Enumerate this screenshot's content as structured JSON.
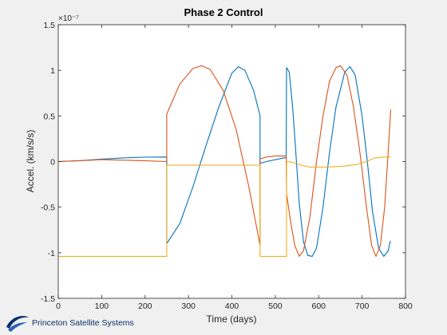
{
  "logo": {
    "text": "Princeton Satellite Systems"
  },
  "chart_data": {
    "type": "line",
    "title": "Phase 2 Control",
    "xlabel": "Time (days)",
    "ylabel": "Accel. (km/s/s)",
    "y_exponent": "×10⁻⁷",
    "xlim": [
      0,
      800
    ],
    "ylim": [
      -1.5,
      1.5
    ],
    "x_ticks": [
      0,
      100,
      200,
      300,
      400,
      500,
      600,
      700,
      800
    ],
    "y_ticks": [
      -1.5,
      -1,
      -0.5,
      0,
      0.5,
      1,
      1.5
    ],
    "x_tick_labels": [
      "0",
      "100",
      "200",
      "300",
      "400",
      "500",
      "600",
      "700",
      "800"
    ],
    "y_tick_labels": [
      "-1.5",
      "-1",
      "-0.5",
      "0",
      "0.5",
      "1",
      "1.5"
    ],
    "grid": false,
    "colors": {
      "blue": "#0072bd",
      "orange": "#d95319",
      "yellow": "#edb120"
    },
    "series": [
      {
        "color": "#0072bd",
        "points": [
          [
            0,
            0
          ],
          [
            50,
            0.01
          ],
          [
            100,
            0.025
          ],
          [
            150,
            0.04
          ],
          [
            200,
            0.048
          ],
          [
            250,
            0.05
          ],
          [
            250,
            -0.9
          ],
          [
            280,
            -0.68
          ],
          [
            310,
            -0.28
          ],
          [
            340,
            0.17
          ],
          [
            370,
            0.6
          ],
          [
            400,
            0.97
          ],
          [
            415,
            1.04
          ],
          [
            430,
            1.0
          ],
          [
            450,
            0.78
          ],
          [
            465,
            0.5
          ],
          [
            465,
            -0.02
          ],
          [
            480,
            0.0
          ],
          [
            500,
            0.02
          ],
          [
            520,
            0.04
          ],
          [
            525,
            0.04
          ],
          [
            526,
            1.03
          ],
          [
            532,
            0.98
          ],
          [
            540,
            0.6
          ],
          [
            548,
            0.05
          ],
          [
            555,
            -0.45
          ],
          [
            565,
            -0.88
          ],
          [
            575,
            -1.03
          ],
          [
            585,
            -1.04
          ],
          [
            595,
            -0.95
          ],
          [
            610,
            -0.5
          ],
          [
            625,
            0.1
          ],
          [
            640,
            0.6
          ],
          [
            660,
            0.98
          ],
          [
            672,
            1.04
          ],
          [
            684,
            0.95
          ],
          [
            700,
            0.5
          ],
          [
            712,
            0.0
          ],
          [
            724,
            -0.55
          ],
          [
            738,
            -0.95
          ],
          [
            750,
            -1.04
          ],
          [
            760,
            -0.98
          ],
          [
            765,
            -0.87
          ]
        ]
      },
      {
        "color": "#d95319",
        "points": [
          [
            0,
            0
          ],
          [
            50,
            0.01
          ],
          [
            100,
            0.02
          ],
          [
            150,
            0.015
          ],
          [
            200,
            0.008
          ],
          [
            250,
            0.0
          ],
          [
            250,
            0.52
          ],
          [
            280,
            0.85
          ],
          [
            310,
            1.02
          ],
          [
            330,
            1.05
          ],
          [
            350,
            1.01
          ],
          [
            380,
            0.78
          ],
          [
            410,
            0.35
          ],
          [
            440,
            -0.3
          ],
          [
            465,
            -0.92
          ],
          [
            465,
            0.03
          ],
          [
            480,
            0.05
          ],
          [
            500,
            0.06
          ],
          [
            525,
            0.06
          ],
          [
            526,
            -0.35
          ],
          [
            535,
            -0.65
          ],
          [
            545,
            -0.92
          ],
          [
            555,
            -1.04
          ],
          [
            565,
            -0.98
          ],
          [
            580,
            -0.6
          ],
          [
            595,
            0.0
          ],
          [
            610,
            0.5
          ],
          [
            625,
            0.88
          ],
          [
            640,
            1.03
          ],
          [
            650,
            1.05
          ],
          [
            665,
            0.95
          ],
          [
            680,
            0.6
          ],
          [
            695,
            0.1
          ],
          [
            710,
            -0.5
          ],
          [
            722,
            -0.92
          ],
          [
            732,
            -1.04
          ],
          [
            742,
            -0.92
          ],
          [
            752,
            -0.5
          ],
          [
            760,
            0.1
          ],
          [
            766,
            0.57
          ]
        ]
      },
      {
        "color": "#edb120",
        "points": [
          [
            0,
            -1.04
          ],
          [
            250,
            -1.04
          ],
          [
            250,
            -0.04
          ],
          [
            465,
            -0.04
          ],
          [
            465,
            -1.04
          ],
          [
            526,
            -1.04
          ],
          [
            526,
            0.0
          ],
          [
            540,
            -0.01
          ],
          [
            560,
            -0.04
          ],
          [
            580,
            -0.06
          ],
          [
            620,
            -0.06
          ],
          [
            660,
            -0.05
          ],
          [
            690,
            -0.03
          ],
          [
            710,
            0.0
          ],
          [
            730,
            0.04
          ],
          [
            750,
            0.05
          ],
          [
            766,
            0.05
          ]
        ]
      }
    ]
  }
}
